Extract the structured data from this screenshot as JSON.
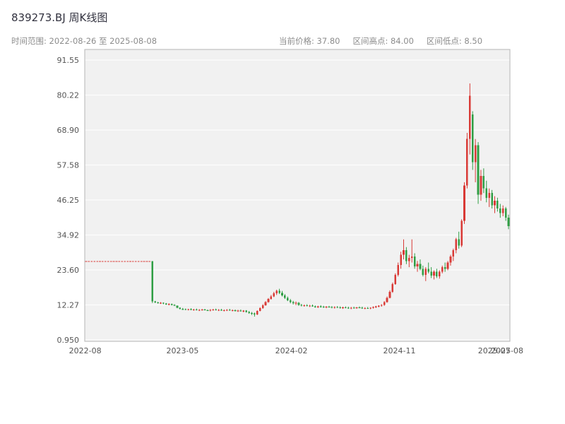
{
  "header": {
    "title": "839273.BJ 周K线图",
    "subtitle_left": "时间范围: 2022-08-26 至 2025-08-08",
    "stats": [
      {
        "label": "当前价格: 37.80"
      },
      {
        "label": "区间高点: 84.00"
      },
      {
        "label": "区间低点: 8.50"
      }
    ]
  },
  "chart_data": {
    "type": "candlestick",
    "title": "839273.BJ 周K线图",
    "frequency": "weekly",
    "date_range": [
      "2022-08-26",
      "2025-08-08"
    ],
    "current_price": 37.8,
    "range_high": 84.0,
    "range_low": 8.5,
    "ylim": [
      0.95,
      91.55
    ],
    "grid": true,
    "y_tick_labels": [
      "91.55",
      "80.22",
      "68.90",
      "57.58",
      "46.25",
      "34.92",
      "23.60",
      "12.27",
      "0.950"
    ],
    "y_tick_values": [
      91.55,
      80.22,
      68.9,
      57.58,
      46.25,
      34.92,
      23.6,
      12.27,
      0.95
    ],
    "x_ticks": [
      {
        "label": "2022-08",
        "f": 0.001
      },
      {
        "label": "2023-05",
        "f": 0.23
      },
      {
        "label": "2024-02",
        "f": 0.486
      },
      {
        "label": "2024-11",
        "f": 0.74
      },
      {
        "label": "2025-07",
        "f": 0.963
      },
      {
        "label": "2025-08",
        "f": 0.9935
      }
    ],
    "colors": {
      "up": "#d93a36",
      "down": "#2f9e44",
      "plot_bg": "#f1f1f1",
      "grid": "#ffffff",
      "frame": "#b5b5b5",
      "tick_text": "#555555"
    },
    "candles": [
      [
        26.46,
        26.46,
        26.46,
        26.46
      ],
      [
        26.46,
        26.46,
        26.46,
        26.46
      ],
      [
        26.46,
        26.46,
        26.46,
        26.46
      ],
      [
        26.46,
        26.46,
        26.46,
        26.46
      ],
      [
        26.46,
        26.46,
        26.46,
        26.46
      ],
      [
        26.46,
        26.46,
        26.46,
        26.46
      ],
      [
        26.46,
        26.46,
        26.46,
        26.46
      ],
      [
        26.46,
        26.46,
        26.46,
        26.46
      ],
      [
        26.46,
        26.46,
        26.46,
        26.46
      ],
      [
        26.46,
        26.46,
        26.46,
        26.46
      ],
      [
        26.46,
        26.46,
        26.46,
        26.46
      ],
      [
        26.46,
        26.46,
        26.46,
        26.46
      ],
      [
        26.46,
        26.46,
        26.46,
        26.46
      ],
      [
        26.46,
        26.46,
        26.46,
        26.46
      ],
      [
        26.46,
        26.46,
        26.46,
        26.46
      ],
      [
        26.46,
        26.46,
        26.46,
        26.46
      ],
      [
        26.46,
        26.46,
        26.46,
        26.46
      ],
      [
        26.46,
        26.46,
        26.46,
        26.46
      ],
      [
        26.46,
        26.46,
        26.46,
        26.46
      ],
      [
        26.46,
        26.46,
        26.46,
        26.46
      ],
      [
        26.46,
        26.46,
        26.46,
        26.46
      ],
      [
        26.46,
        26.46,
        26.46,
        26.46
      ],
      [
        26.46,
        26.46,
        26.46,
        26.46
      ],
      [
        26.46,
        26.46,
        26.46,
        26.46
      ],
      [
        26.46,
        26.46,
        12.9,
        13.4
      ],
      [
        13.4,
        13.6,
        12.9,
        13.1
      ],
      [
        13.1,
        13.3,
        12.7,
        12.9
      ],
      [
        12.9,
        13.2,
        12.6,
        13.0
      ],
      [
        13.0,
        13.1,
        12.5,
        12.7
      ],
      [
        12.7,
        12.9,
        12.3,
        12.5
      ],
      [
        12.5,
        12.8,
        12.2,
        12.6
      ],
      [
        12.6,
        12.7,
        12.1,
        12.3
      ],
      [
        12.3,
        12.5,
        11.9,
        12.0
      ],
      [
        12.0,
        12.1,
        11.2,
        11.4
      ],
      [
        11.4,
        11.5,
        10.8,
        11.0
      ],
      [
        11.0,
        11.3,
        10.7,
        10.9
      ],
      [
        10.9,
        11.1,
        10.6,
        10.8
      ],
      [
        10.8,
        11.0,
        10.5,
        10.9
      ],
      [
        10.9,
        11.2,
        10.6,
        10.7
      ],
      [
        10.7,
        11.0,
        10.4,
        10.8
      ],
      [
        10.8,
        11.1,
        10.5,
        10.6
      ],
      [
        10.6,
        10.9,
        10.3,
        10.7
      ],
      [
        10.7,
        11.0,
        10.4,
        10.8
      ],
      [
        10.8,
        11.0,
        10.5,
        10.6
      ],
      [
        10.6,
        10.8,
        10.3,
        10.5
      ],
      [
        10.5,
        10.9,
        10.2,
        10.7
      ],
      [
        10.7,
        11.0,
        10.4,
        10.8
      ],
      [
        10.8,
        11.1,
        10.5,
        10.6
      ],
      [
        10.6,
        10.9,
        10.3,
        10.7
      ],
      [
        10.7,
        11.0,
        10.4,
        10.5
      ],
      [
        10.5,
        10.8,
        10.2,
        10.6
      ],
      [
        10.6,
        10.9,
        10.3,
        10.7
      ],
      [
        10.7,
        11.0,
        10.4,
        10.5
      ],
      [
        10.5,
        10.8,
        10.2,
        10.6
      ],
      [
        10.6,
        10.8,
        10.1,
        10.4
      ],
      [
        10.4,
        10.7,
        10.0,
        10.5
      ],
      [
        10.5,
        10.8,
        10.1,
        10.3
      ],
      [
        10.3,
        10.6,
        9.9,
        10.4
      ],
      [
        10.4,
        10.6,
        9.8,
        10.0
      ],
      [
        10.0,
        10.3,
        9.4,
        9.7
      ],
      [
        9.7,
        10.0,
        9.0,
        9.5
      ],
      [
        9.5,
        9.8,
        8.5,
        9.2
      ],
      [
        9.2,
        10.5,
        9.0,
        10.3
      ],
      [
        10.3,
        11.5,
        10.2,
        11.2
      ],
      [
        11.2,
        12.5,
        11.0,
        12.2
      ],
      [
        12.2,
        13.5,
        12.0,
        13.2
      ],
      [
        13.2,
        14.5,
        13.0,
        14.2
      ],
      [
        14.2,
        15.5,
        14.0,
        15.0
      ],
      [
        15.0,
        16.5,
        14.8,
        16.0
      ],
      [
        16.0,
        17.2,
        15.5,
        16.8
      ],
      [
        16.8,
        17.5,
        15.8,
        16.2
      ],
      [
        16.2,
        16.8,
        15.0,
        15.4
      ],
      [
        15.4,
        15.8,
        14.2,
        14.6
      ],
      [
        14.6,
        15.0,
        13.5,
        13.8
      ],
      [
        13.8,
        14.2,
        12.8,
        13.2
      ],
      [
        13.2,
        13.6,
        12.4,
        12.8
      ],
      [
        12.8,
        13.4,
        12.2,
        13.0
      ],
      [
        13.0,
        13.2,
        12.0,
        12.3
      ],
      [
        12.3,
        12.6,
        11.8,
        12.0
      ],
      [
        12.0,
        12.4,
        11.7,
        12.2
      ],
      [
        12.2,
        12.5,
        11.8,
        11.9
      ],
      [
        11.9,
        12.3,
        11.6,
        12.1
      ],
      [
        12.1,
        12.4,
        11.7,
        11.8
      ],
      [
        11.8,
        12.1,
        11.4,
        11.6
      ],
      [
        11.6,
        12.0,
        11.3,
        11.8
      ],
      [
        11.8,
        12.2,
        11.5,
        11.7
      ],
      [
        11.7,
        12.0,
        11.3,
        11.5
      ],
      [
        11.5,
        11.9,
        11.2,
        11.7
      ],
      [
        11.7,
        12.0,
        11.4,
        11.6
      ],
      [
        11.6,
        11.9,
        11.2,
        11.4
      ],
      [
        11.4,
        11.8,
        11.1,
        11.6
      ],
      [
        11.6,
        11.9,
        11.3,
        11.5
      ],
      [
        11.5,
        11.8,
        11.1,
        11.3
      ],
      [
        11.3,
        11.7,
        11.0,
        11.5
      ],
      [
        11.5,
        11.8,
        11.2,
        11.4
      ],
      [
        11.4,
        11.7,
        11.0,
        11.2
      ],
      [
        11.2,
        11.6,
        10.9,
        11.4
      ],
      [
        11.4,
        11.7,
        11.1,
        11.3
      ],
      [
        11.3,
        11.6,
        11.0,
        11.5
      ],
      [
        11.5,
        11.8,
        11.2,
        11.4
      ],
      [
        11.4,
        11.7,
        11.0,
        11.2
      ],
      [
        11.2,
        11.5,
        10.9,
        11.3
      ],
      [
        11.3,
        11.6,
        11.0,
        11.2
      ],
      [
        11.2,
        11.5,
        10.9,
        11.4
      ],
      [
        11.4,
        11.8,
        11.1,
        11.6
      ],
      [
        11.6,
        12.0,
        11.3,
        11.8
      ],
      [
        11.8,
        12.2,
        11.5,
        12.0
      ],
      [
        12.0,
        12.5,
        11.7,
        12.3
      ],
      [
        12.3,
        13.5,
        12.0,
        13.2
      ],
      [
        13.2,
        15.0,
        13.0,
        14.6
      ],
      [
        14.6,
        17.0,
        14.4,
        16.5
      ],
      [
        16.5,
        19.5,
        16.2,
        19.0
      ],
      [
        19.0,
        22.5,
        18.8,
        22.0
      ],
      [
        22.0,
        26.0,
        21.5,
        25.2
      ],
      [
        25.2,
        29.5,
        24.0,
        28.5
      ],
      [
        28.5,
        33.5,
        27.0,
        30.0
      ],
      [
        30.0,
        31.0,
        25.5,
        26.5
      ],
      [
        26.5,
        28.5,
        24.5,
        27.5
      ],
      [
        27.5,
        33.5,
        26.0,
        28.0
      ],
      [
        28.0,
        29.0,
        24.0,
        24.8
      ],
      [
        24.8,
        26.5,
        23.0,
        25.5
      ],
      [
        25.5,
        27.0,
        23.5,
        24.0
      ],
      [
        24.0,
        25.0,
        21.5,
        22.0
      ],
      [
        22.0,
        24.5,
        20.0,
        24.0
      ],
      [
        24.0,
        26.0,
        22.5,
        23.0
      ],
      [
        23.0,
        24.5,
        21.0,
        21.8
      ],
      [
        21.8,
        23.5,
        20.5,
        23.0
      ],
      [
        23.0,
        24.0,
        21.0,
        21.5
      ],
      [
        21.5,
        23.5,
        20.8,
        23.0
      ],
      [
        23.0,
        25.0,
        22.5,
        24.5
      ],
      [
        24.5,
        26.0,
        23.0,
        24.0
      ],
      [
        24.0,
        26.5,
        23.5,
        26.0
      ],
      [
        26.0,
        28.5,
        25.0,
        28.0
      ],
      [
        28.0,
        30.5,
        26.5,
        30.0
      ],
      [
        30.0,
        34.0,
        29.0,
        33.5
      ],
      [
        33.5,
        36.0,
        30.5,
        31.5
      ],
      [
        31.5,
        40.0,
        31.0,
        39.5
      ],
      [
        39.5,
        52.0,
        38.5,
        51.0
      ],
      [
        51.0,
        68.0,
        50.0,
        66.0
      ],
      [
        66.0,
        84.0,
        61.0,
        80.0
      ],
      [
        74.0,
        75.0,
        56.0,
        58.5
      ],
      [
        58.5,
        66.0,
        52.0,
        64.0
      ],
      [
        64.0,
        65.0,
        45.0,
        48.0
      ],
      [
        48.0,
        56.0,
        46.0,
        54.0
      ],
      [
        54.0,
        56.5,
        48.5,
        50.0
      ],
      [
        50.0,
        52.5,
        45.5,
        47.0
      ],
      [
        47.0,
        50.0,
        44.0,
        48.5
      ],
      [
        48.5,
        49.5,
        43.5,
        44.5
      ],
      [
        44.5,
        47.5,
        42.0,
        46.0
      ],
      [
        46.0,
        47.0,
        42.5,
        43.5
      ],
      [
        43.5,
        45.0,
        40.5,
        42.0
      ],
      [
        42.0,
        44.5,
        41.0,
        43.5
      ],
      [
        43.5,
        44.0,
        39.5,
        40.5
      ],
      [
        40.5,
        41.5,
        36.8,
        37.8
      ]
    ]
  }
}
